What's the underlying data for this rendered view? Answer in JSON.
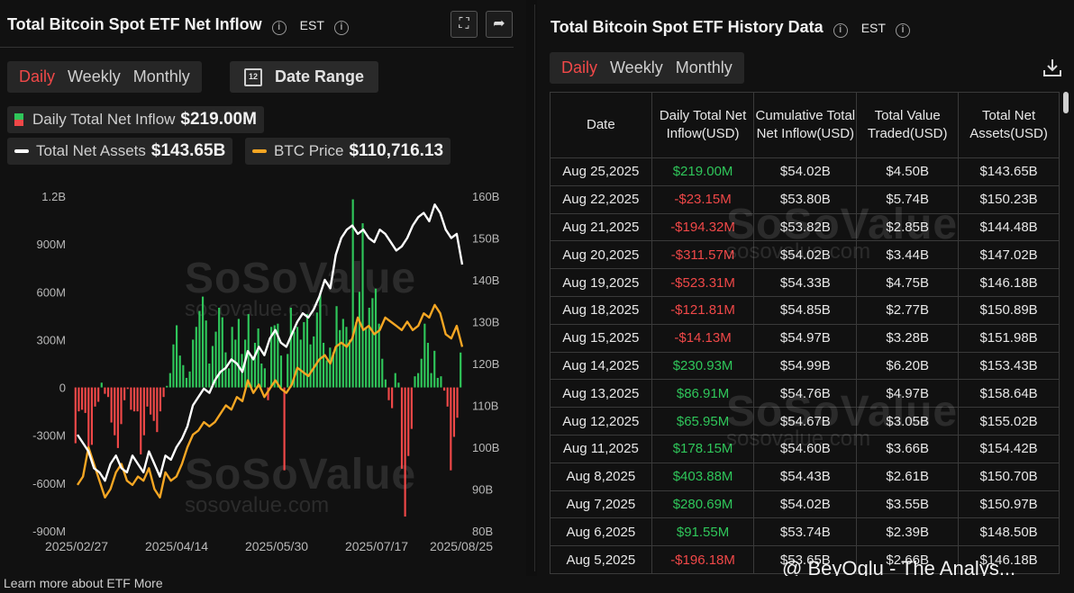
{
  "left": {
    "title": "Total Bitcoin Spot ETF Net Inflow",
    "timezone": "EST",
    "tabs": [
      "Daily",
      "Weekly",
      "Monthly"
    ],
    "active_tab": "Daily",
    "date_range_label": "Date Range",
    "calendar_day": "12",
    "legend": {
      "inflow_label": "Daily Total Net Inflow",
      "inflow_value": "$219.00M",
      "assets_label": "Total Net Assets",
      "assets_value": "$143.65B",
      "btc_label": "BTC Price",
      "btc_value": "$110,716.13"
    }
  },
  "right": {
    "title": "Total Bitcoin Spot ETF History Data",
    "timezone": "EST",
    "tabs": [
      "Daily",
      "Weekly",
      "Monthly"
    ],
    "active_tab": "Daily",
    "columns": [
      "Date",
      "Daily Total Net Inflow(USD)",
      "Cumulative Total Net Inflow(USD)",
      "Total Value Traded(USD)",
      "Total Net Assets(USD)"
    ],
    "rows": [
      [
        "Aug 25,2025",
        "$219.00M",
        "$54.02B",
        "$4.50B",
        "$143.65B"
      ],
      [
        "Aug 22,2025",
        "-$23.15M",
        "$53.80B",
        "$5.74B",
        "$150.23B"
      ],
      [
        "Aug 21,2025",
        "-$194.32M",
        "$53.82B",
        "$2.85B",
        "$144.48B"
      ],
      [
        "Aug 20,2025",
        "-$311.57M",
        "$54.02B",
        "$3.44B",
        "$147.02B"
      ],
      [
        "Aug 19,2025",
        "-$523.31M",
        "$54.33B",
        "$4.75B",
        "$146.18B"
      ],
      [
        "Aug 18,2025",
        "-$121.81M",
        "$54.85B",
        "$2.77B",
        "$150.89B"
      ],
      [
        "Aug 15,2025",
        "-$14.13M",
        "$54.97B",
        "$3.28B",
        "$151.98B"
      ],
      [
        "Aug 14,2025",
        "$230.93M",
        "$54.99B",
        "$6.20B",
        "$153.43B"
      ],
      [
        "Aug 13,2025",
        "$86.91M",
        "$54.76B",
        "$4.97B",
        "$158.64B"
      ],
      [
        "Aug 12,2025",
        "$65.95M",
        "$54.67B",
        "$3.05B",
        "$155.02B"
      ],
      [
        "Aug 11,2025",
        "$178.15M",
        "$54.60B",
        "$3.66B",
        "$154.42B"
      ],
      [
        "Aug 8,2025",
        "$403.88M",
        "$54.43B",
        "$2.61B",
        "$150.70B"
      ],
      [
        "Aug 7,2025",
        "$280.69M",
        "$54.02B",
        "$3.55B",
        "$150.97B"
      ],
      [
        "Aug 6,2025",
        "$91.55M",
        "$53.74B",
        "$2.39B",
        "$148.50B"
      ],
      [
        "Aug 5,2025",
        "-$196.18M",
        "$53.65B",
        "$2.66B",
        "$146.18B"
      ]
    ]
  },
  "watermark": {
    "brand": "SoSoValue",
    "site": "sosovalue.com"
  },
  "footer": {
    "text": "Learn more about ETF   More"
  },
  "credit": "@ BeyOglu - The Analys...",
  "colors": {
    "positive": "#2fc65a",
    "negative": "#f04848",
    "assets_line": "#ffffff",
    "btc_line": "#f5a623",
    "accent": "#f04848"
  },
  "chart_data": {
    "type": "bar",
    "title": "Total Bitcoin Spot ETF Net Inflow",
    "x_ticks": [
      "2025/02/27",
      "2025/04/14",
      "2025/05/30",
      "2025/07/17",
      "2025/08/25"
    ],
    "y_left": {
      "ticks": [
        "1.2B",
        "900M",
        "600M",
        "300M",
        "0",
        "-300M",
        "-600M",
        "-900M"
      ],
      "range": [
        -900,
        1200
      ],
      "unit": "M"
    },
    "y_right": {
      "ticks": [
        "160B",
        "150B",
        "140B",
        "130B",
        "120B",
        "110B",
        "100B",
        "90B",
        "80B"
      ],
      "range": [
        80,
        160
      ],
      "unit": "B"
    },
    "series": [
      {
        "name": "Daily Total Net Inflow",
        "type": "bar",
        "values": [
          -350,
          -150,
          -140,
          -160,
          -370,
          -360,
          -120,
          -90,
          30,
          -40,
          -60,
          -220,
          -300,
          -380,
          -230,
          -80,
          -10,
          -140,
          -150,
          -150,
          -420,
          -300,
          -120,
          -170,
          -210,
          -280,
          -150,
          -60,
          10,
          90,
          270,
          390,
          200,
          140,
          60,
          100,
          300,
          380,
          480,
          570,
          420,
          150,
          260,
          350,
          500,
          440,
          220,
          120,
          380,
          300,
          430,
          210,
          300,
          460,
          200,
          280,
          370,
          150,
          120,
          -80,
          380,
          390,
          400,
          200,
          -520,
          210,
          500,
          350,
          380,
          300,
          410,
          460,
          270,
          320,
          470,
          590,
          280,
          170,
          250,
          220,
          510,
          360,
          430,
          380,
          300,
          1180,
          410,
          600,
          1030,
          370,
          500,
          560,
          620,
          400,
          180,
          50,
          -80,
          -130,
          90,
          30,
          -510,
          -810,
          -430,
          -260,
          70,
          90,
          180,
          400,
          280,
          90,
          230,
          60,
          70,
          -20,
          -120,
          -520,
          -310,
          -190,
          219
        ]
      },
      {
        "name": "Total Net Assets",
        "type": "line",
        "values": [
          103,
          101,
          99,
          95,
          94,
          92,
          96,
          98,
          95,
          94,
          98,
          96,
          94,
          99,
          96,
          93,
          98,
          97,
          100,
          102,
          105,
          110,
          112,
          114,
          113,
          116,
          118,
          119,
          121,
          120,
          118,
          123,
          121,
          124,
          122,
          126,
          128,
          125,
          124,
          127,
          130,
          132,
          131,
          133,
          136,
          140,
          138,
          146,
          150,
          152,
          153,
          151,
          152,
          150,
          149,
          152,
          151,
          149,
          147,
          148,
          150,
          153,
          155,
          156,
          154,
          158,
          156,
          152,
          150,
          151,
          143.65
        ]
      },
      {
        "name": "BTC Price",
        "type": "line",
        "values": [
          91,
          93,
          100,
          96,
          92,
          88,
          90,
          94,
          96,
          92,
          91,
          93,
          92,
          95,
          90,
          88,
          94,
          92,
          93,
          96,
          100,
          103,
          104,
          106,
          105,
          106,
          108,
          110,
          109,
          112,
          111,
          116,
          113,
          115,
          112,
          114,
          116,
          114,
          113,
          115,
          119,
          118,
          117,
          119,
          121,
          122,
          120,
          124,
          125,
          124,
          126,
          131,
          128,
          129,
          127,
          128,
          131,
          130,
          129,
          128,
          130,
          128,
          129,
          132,
          131,
          134,
          132,
          127,
          126,
          129,
          124
        ]
      }
    ]
  }
}
